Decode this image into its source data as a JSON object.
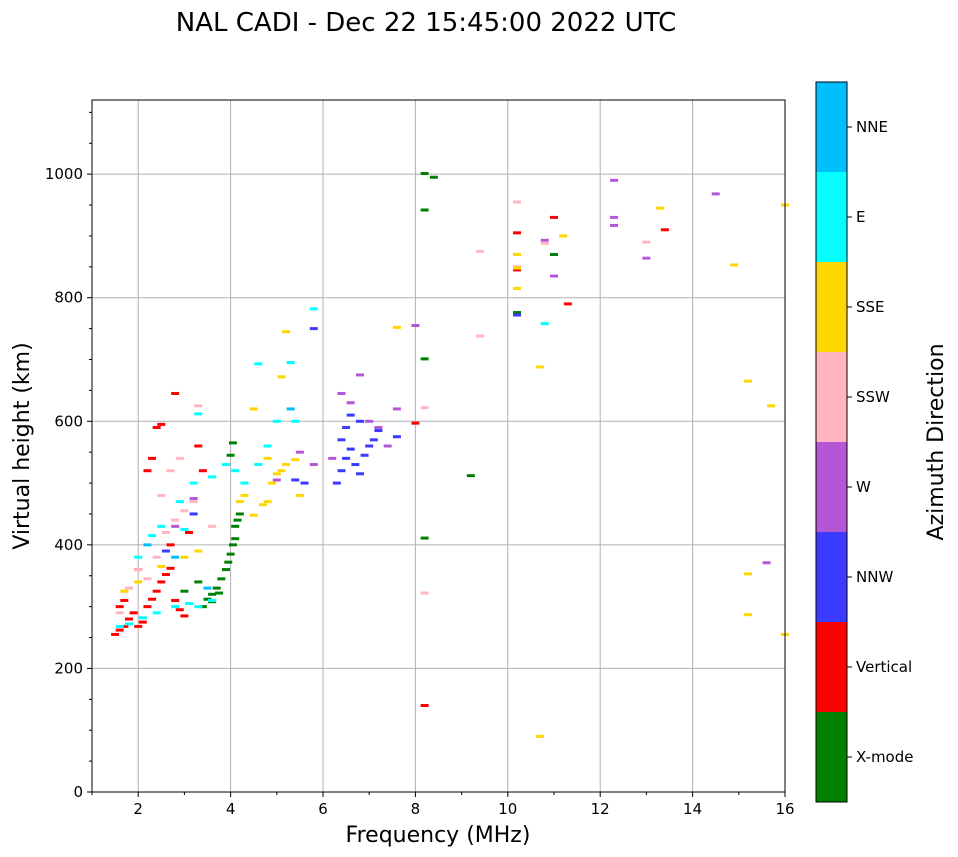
{
  "chart_data": {
    "type": "scatter",
    "title": "NAL CADI - Dec 22 15:45:00 2022 UTC",
    "xlabel": "Frequency (MHz)",
    "ylabel": "Virtual height (km)",
    "xlim": [
      1,
      16
    ],
    "ylim": [
      0,
      1120
    ],
    "xticks": [
      2,
      4,
      6,
      8,
      10,
      12,
      14,
      16
    ],
    "yticks": [
      0,
      200,
      400,
      600,
      800,
      1000
    ],
    "grid": true,
    "colorbar": {
      "label": "Azimuth Direction",
      "categories": [
        {
          "name": "X-mode",
          "color": "#008000"
        },
        {
          "name": "Vertical",
          "color": "#ff0000"
        },
        {
          "name": "NNW",
          "color": "#3b3bff"
        },
        {
          "name": "W",
          "color": "#b457d6"
        },
        {
          "name": "SSW",
          "color": "#ffb6c1"
        },
        {
          "name": "SSE",
          "color": "#ffd700"
        },
        {
          "name": "E",
          "color": "#00ffff"
        },
        {
          "name": "NNE",
          "color": "#00bfff"
        }
      ]
    },
    "series": [
      {
        "name": "X-mode",
        "points": [
          [
            3.4,
            300
          ],
          [
            3.5,
            312
          ],
          [
            3.6,
            320
          ],
          [
            3.7,
            330
          ],
          [
            3.8,
            345
          ],
          [
            3.9,
            360
          ],
          [
            3.95,
            372
          ],
          [
            4.0,
            385
          ],
          [
            4.05,
            400
          ],
          [
            4.1,
            410
          ],
          [
            4.1,
            430
          ],
          [
            4.15,
            440
          ],
          [
            4.2,
            450
          ],
          [
            3.3,
            340
          ],
          [
            3.0,
            325
          ],
          [
            3.6,
            308
          ],
          [
            3.75,
            322
          ],
          [
            4.0,
            545
          ],
          [
            4.05,
            565
          ],
          [
            8.2,
            1001
          ],
          [
            8.2,
            942
          ],
          [
            8.2,
            701
          ],
          [
            8.2,
            411
          ],
          [
            9.2,
            512
          ],
          [
            10.2,
            776
          ],
          [
            11.0,
            870
          ],
          [
            8.4,
            995
          ]
        ]
      },
      {
        "name": "Vertical",
        "points": [
          [
            1.5,
            255
          ],
          [
            1.6,
            262
          ],
          [
            1.7,
            268
          ],
          [
            1.8,
            280
          ],
          [
            1.9,
            290
          ],
          [
            2.0,
            268
          ],
          [
            2.1,
            275
          ],
          [
            2.2,
            300
          ],
          [
            2.3,
            312
          ],
          [
            2.4,
            325
          ],
          [
            2.5,
            340
          ],
          [
            2.6,
            352
          ],
          [
            2.7,
            362
          ],
          [
            2.8,
            310
          ],
          [
            2.9,
            295
          ],
          [
            3.0,
            285
          ],
          [
            1.6,
            300
          ],
          [
            1.7,
            310
          ],
          [
            2.4,
            590
          ],
          [
            2.5,
            595
          ],
          [
            2.8,
            645
          ],
          [
            2.2,
            520
          ],
          [
            2.3,
            540
          ],
          [
            3.3,
            560
          ],
          [
            3.4,
            520
          ],
          [
            2.0,
            360
          ],
          [
            2.7,
            400
          ],
          [
            3.1,
            420
          ],
          [
            8.0,
            597
          ],
          [
            8.2,
            140
          ],
          [
            10.2,
            905
          ],
          [
            10.2,
            845
          ],
          [
            11.0,
            930
          ],
          [
            11.3,
            790
          ],
          [
            13.4,
            910
          ]
        ]
      },
      {
        "name": "NNW",
        "points": [
          [
            6.3,
            500
          ],
          [
            6.4,
            520
          ],
          [
            6.5,
            540
          ],
          [
            6.6,
            555
          ],
          [
            6.7,
            530
          ],
          [
            6.8,
            515
          ],
          [
            6.9,
            545
          ],
          [
            7.0,
            560
          ],
          [
            7.1,
            570
          ],
          [
            7.2,
            585
          ],
          [
            6.4,
            570
          ],
          [
            6.5,
            590
          ],
          [
            6.6,
            610
          ],
          [
            6.8,
            600
          ],
          [
            7.6,
            575
          ],
          [
            5.4,
            505
          ],
          [
            5.6,
            500
          ],
          [
            5.8,
            750
          ],
          [
            2.6,
            390
          ],
          [
            3.2,
            450
          ],
          [
            10.2,
            772
          ]
        ]
      },
      {
        "name": "W",
        "points": [
          [
            6.4,
            645
          ],
          [
            6.6,
            630
          ],
          [
            6.8,
            675
          ],
          [
            7.0,
            600
          ],
          [
            7.2,
            590
          ],
          [
            7.4,
            560
          ],
          [
            7.6,
            620
          ],
          [
            6.2,
            540
          ],
          [
            8.0,
            755
          ],
          [
            5.0,
            505
          ],
          [
            5.5,
            550
          ],
          [
            5.8,
            530
          ],
          [
            10.8,
            893
          ],
          [
            11.0,
            835
          ],
          [
            12.3,
            990
          ],
          [
            12.3,
            930
          ],
          [
            12.3,
            917
          ],
          [
            13.0,
            864
          ],
          [
            14.5,
            968
          ],
          [
            15.6,
            371
          ],
          [
            2.8,
            430
          ],
          [
            3.2,
            475
          ]
        ]
      },
      {
        "name": "SSW",
        "points": [
          [
            1.6,
            290
          ],
          [
            1.8,
            330
          ],
          [
            2.0,
            360
          ],
          [
            2.2,
            345
          ],
          [
            2.4,
            380
          ],
          [
            2.6,
            420
          ],
          [
            2.8,
            440
          ],
          [
            3.0,
            455
          ],
          [
            3.2,
            470
          ],
          [
            2.5,
            480
          ],
          [
            2.7,
            520
          ],
          [
            2.9,
            540
          ],
          [
            3.3,
            625
          ],
          [
            3.6,
            430
          ],
          [
            8.2,
            622
          ],
          [
            8.2,
            322
          ],
          [
            9.4,
            875
          ],
          [
            9.4,
            738
          ],
          [
            10.2,
            955
          ],
          [
            10.2,
            850
          ],
          [
            10.8,
            888
          ],
          [
            13.0,
            890
          ]
        ]
      },
      {
        "name": "SSE",
        "points": [
          [
            1.7,
            325
          ],
          [
            2.0,
            340
          ],
          [
            2.5,
            365
          ],
          [
            3.0,
            380
          ],
          [
            3.3,
            390
          ],
          [
            4.2,
            470
          ],
          [
            4.3,
            480
          ],
          [
            4.5,
            448
          ],
          [
            4.7,
            465
          ],
          [
            4.8,
            470
          ],
          [
            4.9,
            500
          ],
          [
            5.0,
            515
          ],
          [
            5.1,
            520
          ],
          [
            5.2,
            530
          ],
          [
            5.5,
            480
          ],
          [
            5.2,
            745
          ],
          [
            5.1,
            672
          ],
          [
            7.6,
            752
          ],
          [
            10.2,
            870
          ],
          [
            10.2,
            848
          ],
          [
            10.2,
            815
          ],
          [
            10.7,
            688
          ],
          [
            10.7,
            90
          ],
          [
            11.2,
            900
          ],
          [
            13.3,
            945
          ],
          [
            14.9,
            853
          ],
          [
            15.2,
            665
          ],
          [
            15.7,
            625
          ],
          [
            15.2,
            353
          ],
          [
            15.2,
            287
          ],
          [
            16.0,
            950
          ],
          [
            16.0,
            255
          ],
          [
            4.5,
            620
          ],
          [
            4.8,
            540
          ],
          [
            5.4,
            538
          ]
        ]
      },
      {
        "name": "E",
        "points": [
          [
            1.6,
            268
          ],
          [
            1.8,
            272
          ],
          [
            2.1,
            282
          ],
          [
            2.4,
            290
          ],
          [
            2.8,
            300
          ],
          [
            3.1,
            305
          ],
          [
            3.3,
            300
          ],
          [
            3.6,
            310
          ],
          [
            2.0,
            380
          ],
          [
            2.3,
            415
          ],
          [
            2.5,
            430
          ],
          [
            2.9,
            470
          ],
          [
            3.2,
            500
          ],
          [
            3.6,
            510
          ],
          [
            3.9,
            530
          ],
          [
            4.1,
            520
          ],
          [
            4.3,
            500
          ],
          [
            4.6,
            530
          ],
          [
            4.8,
            560
          ],
          [
            5.0,
            600
          ],
          [
            5.3,
            695
          ],
          [
            5.4,
            600
          ],
          [
            4.6,
            693
          ],
          [
            5.8,
            782
          ],
          [
            10.8,
            758
          ],
          [
            3.0,
            425
          ],
          [
            3.3,
            612
          ]
        ]
      },
      {
        "name": "NNE",
        "points": [
          [
            2.2,
            400
          ],
          [
            2.8,
            380
          ],
          [
            3.5,
            330
          ],
          [
            5.3,
            620
          ]
        ]
      }
    ]
  }
}
